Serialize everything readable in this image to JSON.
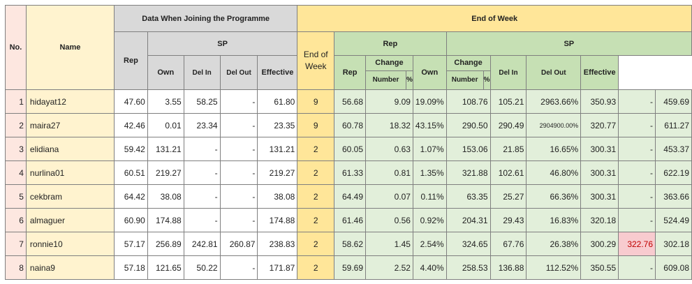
{
  "headers": {
    "no": "No.",
    "name": "Name",
    "joining": "Data When Joining the Programme",
    "end_of_week": "End of Week",
    "rep": "Rep",
    "sp": "SP",
    "own": "Own",
    "del_in": "Del In",
    "del_out": "Del Out",
    "effective": "Effective",
    "end_of_week_col": "End of Week",
    "change": "Change",
    "number": "Number",
    "percent": "%"
  },
  "rows": [
    {
      "no": "1",
      "name": "hidayat12",
      "j_rep": "47.60",
      "j_own": "3.55",
      "j_del_in": "58.25",
      "j_del_out": "-",
      "j_eff": "61.80",
      "week": "9",
      "e_rep": "56.68",
      "rep_num": "9.09",
      "rep_pct": "19.09%",
      "e_own": "108.76",
      "sp_num": "105.21",
      "sp_pct": "2963.66%",
      "e_del_in": "350.93",
      "e_del_out": "-",
      "e_eff": "459.69"
    },
    {
      "no": "2",
      "name": "maira27",
      "j_rep": "42.46",
      "j_own": "0.01",
      "j_del_in": "23.34",
      "j_del_out": "-",
      "j_eff": "23.35",
      "week": "9",
      "e_rep": "60.78",
      "rep_num": "18.32",
      "rep_pct": "43.15%",
      "e_own": "290.50",
      "sp_num": "290.49",
      "sp_pct": "2904900.00%",
      "e_del_in": "320.77",
      "e_del_out": "-",
      "e_eff": "611.27"
    },
    {
      "no": "3",
      "name": "elidiana",
      "j_rep": "59.42",
      "j_own": "131.21",
      "j_del_in": "-",
      "j_del_out": "-",
      "j_eff": "131.21",
      "week": "2",
      "e_rep": "60.05",
      "rep_num": "0.63",
      "rep_pct": "1.07%",
      "e_own": "153.06",
      "sp_num": "21.85",
      "sp_pct": "16.65%",
      "e_del_in": "300.31",
      "e_del_out": "-",
      "e_eff": "453.37"
    },
    {
      "no": "4",
      "name": "nurlina01",
      "j_rep": "60.51",
      "j_own": "219.27",
      "j_del_in": "-",
      "j_del_out": "-",
      "j_eff": "219.27",
      "week": "2",
      "e_rep": "61.33",
      "rep_num": "0.81",
      "rep_pct": "1.35%",
      "e_own": "321.88",
      "sp_num": "102.61",
      "sp_pct": "46.80%",
      "e_del_in": "300.31",
      "e_del_out": "-",
      "e_eff": "622.19"
    },
    {
      "no": "5",
      "name": "cekbram",
      "j_rep": "64.42",
      "j_own": "38.08",
      "j_del_in": "-",
      "j_del_out": "-",
      "j_eff": "38.08",
      "week": "2",
      "e_rep": "64.49",
      "rep_num": "0.07",
      "rep_pct": "0.11%",
      "e_own": "63.35",
      "sp_num": "25.27",
      "sp_pct": "66.36%",
      "e_del_in": "300.31",
      "e_del_out": "-",
      "e_eff": "363.66"
    },
    {
      "no": "6",
      "name": "almaguer",
      "j_rep": "60.90",
      "j_own": "174.88",
      "j_del_in": "-",
      "j_del_out": "-",
      "j_eff": "174.88",
      "week": "2",
      "e_rep": "61.46",
      "rep_num": "0.56",
      "rep_pct": "0.92%",
      "e_own": "204.31",
      "sp_num": "29.43",
      "sp_pct": "16.83%",
      "e_del_in": "320.18",
      "e_del_out": "-",
      "e_eff": "524.49"
    },
    {
      "no": "7",
      "name": "ronnie10",
      "j_rep": "57.17",
      "j_own": "256.89",
      "j_del_in": "242.81",
      "j_del_out": "260.87",
      "j_eff": "238.83",
      "week": "2",
      "e_rep": "58.62",
      "rep_num": "1.45",
      "rep_pct": "2.54%",
      "e_own": "324.65",
      "sp_num": "67.76",
      "sp_pct": "26.38%",
      "e_del_in": "300.29",
      "e_del_out": "322.76",
      "e_eff": "302.18"
    },
    {
      "no": "8",
      "name": "naina9",
      "j_rep": "57.18",
      "j_own": "121.65",
      "j_del_in": "50.22",
      "j_del_out": "-",
      "j_eff": "171.87",
      "week": "2",
      "e_rep": "59.69",
      "rep_num": "2.52",
      "rep_pct": "4.40%",
      "e_own": "258.53",
      "sp_num": "136.88",
      "sp_pct": "112.52%",
      "e_del_in": "350.55",
      "e_del_out": "-",
      "e_eff": "609.08"
    }
  ],
  "colors": {
    "no_bg": "#fde7e0",
    "name_bg": "#fff3cf",
    "joining_header_bg": "#d9d9d9",
    "end_of_week_header_bg": "#ffe699",
    "end_green_header_bg": "#c6e0b4",
    "end_green_cell_bg": "#e2efda",
    "highlight_bg": "#f8cbcf",
    "highlight_text": "#c00000"
  }
}
